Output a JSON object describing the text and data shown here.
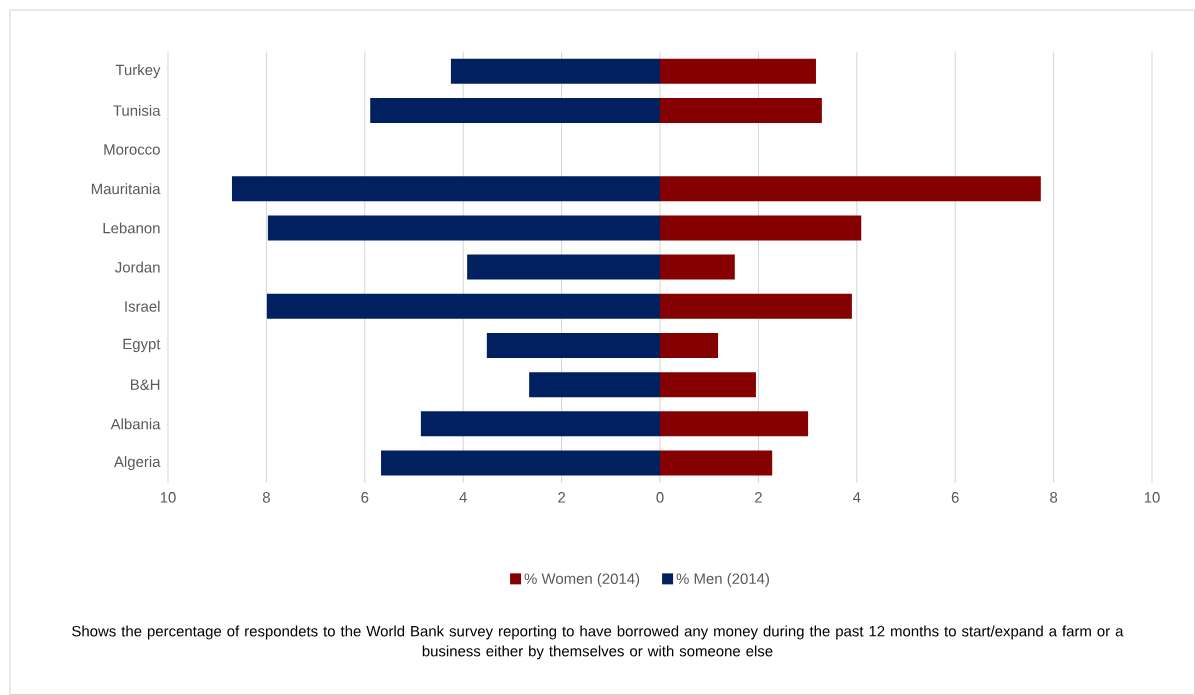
{
  "chart_data": {
    "type": "bar",
    "orientation": "horizontal",
    "categories": [
      "Turkey",
      "Tunisia",
      "Morocco",
      "Mauritania",
      "Lebanon",
      "Jordan",
      "Israel",
      "Egypt",
      "B&H",
      "Albania",
      "Algeria"
    ],
    "series": [
      {
        "name": "% Women (2014)",
        "color": "#850000",
        "values": [
          3.17,
          3.29,
          null,
          7.74,
          4.09,
          1.52,
          3.9,
          1.18,
          1.95,
          3.01,
          2.28
        ]
      },
      {
        "name": "% Men (2014)",
        "color": "#002060",
        "values": [
          -4.25,
          -5.89,
          null,
          -8.7,
          -7.97,
          -3.92,
          -7.99,
          -3.52,
          -2.66,
          -4.86,
          -5.67
        ]
      }
    ],
    "xlim": [
      -10,
      10
    ],
    "xticks": [
      {
        "value": -10,
        "label": "10"
      },
      {
        "value": -8,
        "label": "8"
      },
      {
        "value": -6,
        "label": "6"
      },
      {
        "value": -4,
        "label": "4"
      },
      {
        "value": -2,
        "label": "2"
      },
      0,
      2,
      4,
      6,
      8,
      10
    ],
    "stacked": true,
    "grid": "x",
    "legend": "bottom",
    "annotations": [
      "Shows the percentage of respondets to the World Bank survey reporting to have borrowed any money  during the past 12 months  to start/expand a farm or a business either by themselves or with someone else"
    ]
  }
}
